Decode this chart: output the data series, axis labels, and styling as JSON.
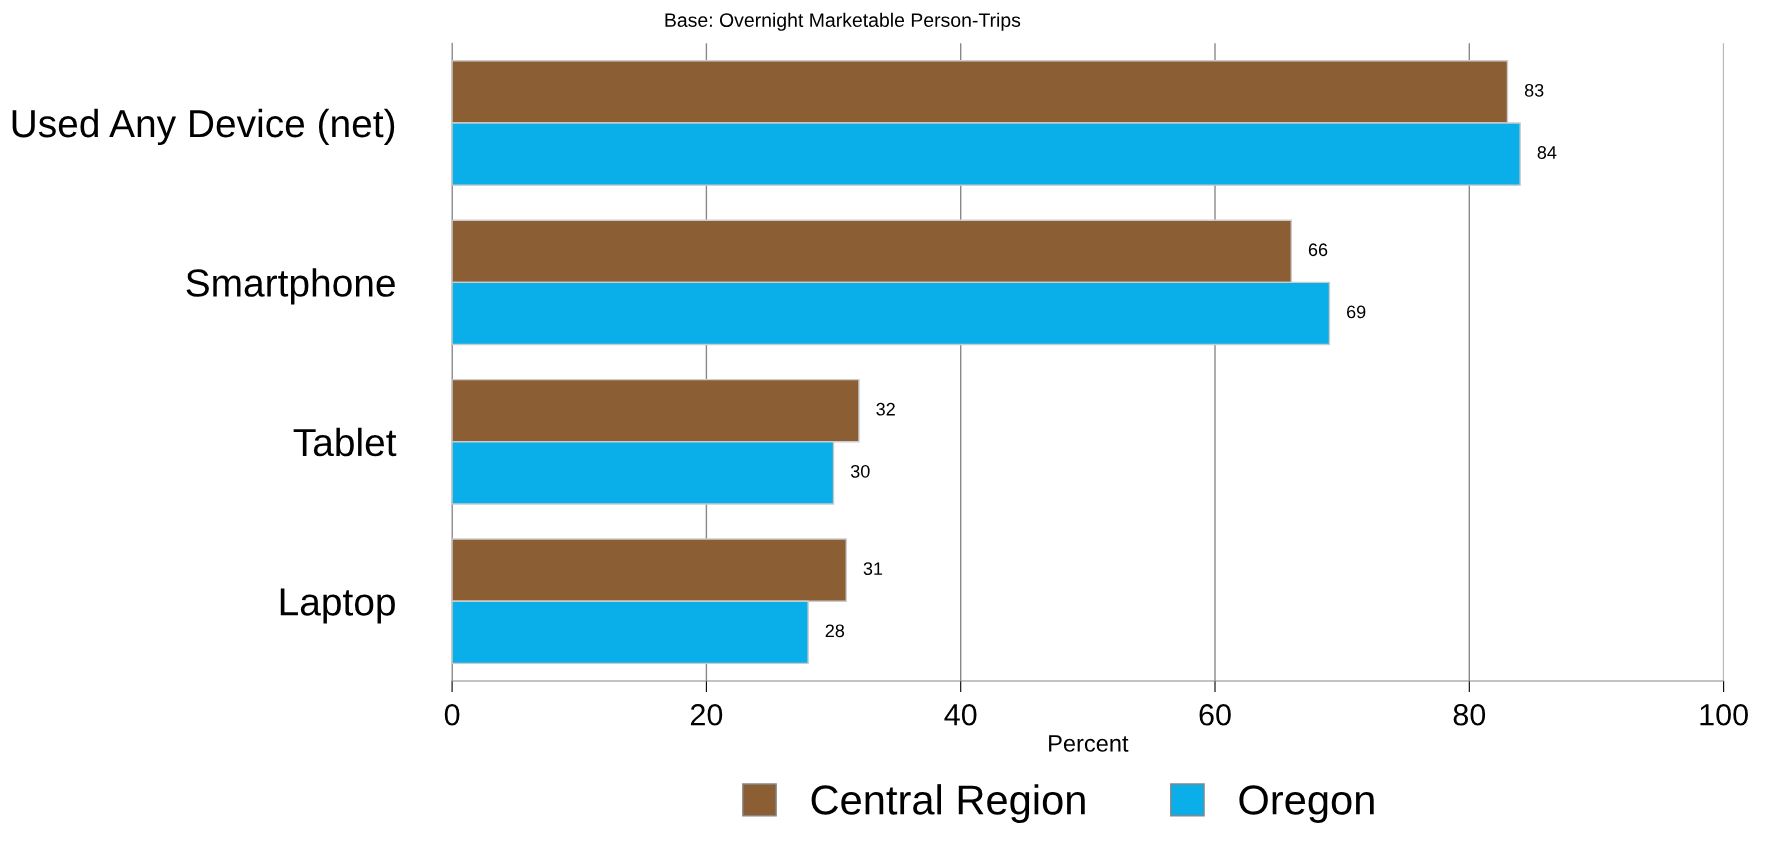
{
  "chart_data": {
    "type": "bar",
    "orientation": "horizontal",
    "title": "Base: Overnight Marketable Person-Trips",
    "xlabel": "Percent",
    "categories": [
      "Used Any Device (net)",
      "Smartphone",
      "Tablet",
      "Laptop"
    ],
    "series": [
      {
        "name": "Central Region",
        "color": "#8b5e34",
        "values": [
          83,
          66,
          32,
          31
        ]
      },
      {
        "name": "Oregon",
        "color": "#0aaee8",
        "values": [
          84,
          69,
          30,
          28
        ]
      }
    ],
    "xlim": [
      0,
      100
    ],
    "xticks": [
      0,
      20,
      40,
      60,
      80,
      100
    ],
    "grid": "x",
    "legend": "bottom",
    "data_labels": true
  }
}
